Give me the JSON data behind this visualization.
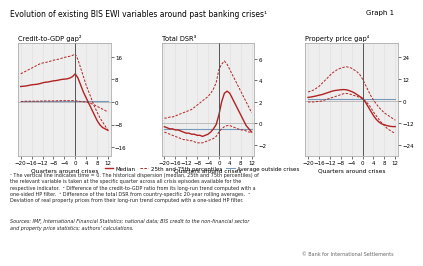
{
  "title": "Evolution of existing BIS EWI variables around past banking crises¹",
  "graph_label": "Graph 1",
  "quarters": [
    -20,
    -19,
    -18,
    -17,
    -16,
    -15,
    -14,
    -13,
    -12,
    -11,
    -10,
    -9,
    -8,
    -7,
    -6,
    -5,
    -4,
    -3,
    -2,
    -1,
    0,
    1,
    2,
    3,
    4,
    5,
    6,
    7,
    8,
    9,
    10,
    11,
    12
  ],
  "panel1": {
    "title": "Credit-to-GDP gap²",
    "yticks": [
      -16,
      -8,
      0,
      8,
      16
    ],
    "ylim": [
      -19,
      21
    ],
    "median": [
      5.5,
      5.6,
      5.7,
      5.9,
      6.1,
      6.2,
      6.3,
      6.5,
      6.8,
      7.0,
      7.1,
      7.3,
      7.5,
      7.6,
      7.8,
      8.0,
      8.1,
      8.2,
      8.5,
      9.0,
      10.0,
      8.5,
      6.0,
      3.5,
      1.5,
      -0.5,
      -2.5,
      -4.5,
      -6.5,
      -8.0,
      -9.0,
      -9.5,
      -10.0
    ],
    "p25": [
      0.2,
      0.2,
      0.3,
      0.3,
      0.3,
      0.3,
      0.3,
      0.3,
      0.4,
      0.4,
      0.4,
      0.4,
      0.4,
      0.4,
      0.5,
      0.5,
      0.5,
      0.5,
      0.5,
      0.5,
      0.5,
      0.3,
      0.2,
      0.1,
      0.0,
      -0.3,
      -0.6,
      -1.0,
      -1.5,
      -2.0,
      -2.5,
      -3.0,
      -3.5
    ],
    "p75": [
      10.0,
      10.5,
      11.0,
      11.5,
      12.0,
      12.5,
      13.0,
      13.5,
      13.8,
      14.0,
      14.2,
      14.5,
      14.8,
      15.0,
      15.2,
      15.5,
      15.8,
      16.0,
      16.2,
      16.5,
      17.0,
      15.0,
      12.0,
      9.0,
      6.0,
      3.5,
      1.0,
      -1.5,
      -3.5,
      -5.5,
      -7.0,
      -8.5,
      -10.0
    ],
    "avg_outside": [
      0.5,
      0.5,
      0.5,
      0.5,
      0.5,
      0.5,
      0.5,
      0.5,
      0.5,
      0.5,
      0.5,
      0.5,
      0.5,
      0.5,
      0.5,
      0.5,
      0.5,
      0.5,
      0.5,
      0.5,
      0.5,
      0.5,
      0.5,
      0.5,
      0.5,
      0.5,
      0.5,
      0.5,
      0.5,
      0.5,
      0.5,
      0.5,
      0.5
    ]
  },
  "panel2": {
    "title": "Total DSR³",
    "yticks": [
      -2,
      0,
      2,
      4,
      6
    ],
    "ylim": [
      -3,
      7.5
    ],
    "median": [
      -0.3,
      -0.4,
      -0.5,
      -0.5,
      -0.6,
      -0.6,
      -0.7,
      -0.8,
      -0.9,
      -0.9,
      -1.0,
      -1.0,
      -1.1,
      -1.1,
      -1.2,
      -1.1,
      -1.0,
      -0.8,
      -0.5,
      -0.1,
      0.8,
      2.0,
      2.8,
      3.0,
      2.8,
      2.3,
      1.8,
      1.3,
      0.8,
      0.3,
      -0.2,
      -0.5,
      -0.8
    ],
    "p25": [
      -0.8,
      -0.9,
      -1.0,
      -1.1,
      -1.2,
      -1.3,
      -1.4,
      -1.5,
      -1.5,
      -1.6,
      -1.6,
      -1.7,
      -1.8,
      -1.8,
      -1.8,
      -1.7,
      -1.6,
      -1.5,
      -1.4,
      -1.2,
      -0.8,
      -0.5,
      -0.3,
      -0.2,
      -0.2,
      -0.3,
      -0.4,
      -0.5,
      -0.6,
      -0.6,
      -0.7,
      -0.8,
      -0.8
    ],
    "p75": [
      0.5,
      0.5,
      0.6,
      0.6,
      0.7,
      0.8,
      0.9,
      1.0,
      1.1,
      1.2,
      1.3,
      1.5,
      1.7,
      1.9,
      2.1,
      2.3,
      2.5,
      2.8,
      3.2,
      3.8,
      5.0,
      5.5,
      5.8,
      5.5,
      5.0,
      4.5,
      4.0,
      3.5,
      3.0,
      2.5,
      2.0,
      1.5,
      1.0
    ],
    "avg_outside": [
      -0.5,
      -0.5,
      -0.5,
      -0.5,
      -0.5,
      -0.5,
      -0.5,
      -0.5,
      -0.5,
      -0.5,
      -0.5,
      -0.5,
      -0.5,
      -0.5,
      -0.5,
      -0.5,
      -0.5,
      -0.5,
      -0.5,
      -0.5,
      -0.5,
      -0.5,
      -0.5,
      -0.5,
      -0.5,
      -0.5,
      -0.5,
      -0.5,
      -0.5,
      -0.5,
      -0.5,
      -0.5,
      -0.5
    ]
  },
  "panel3": {
    "title": "Property price gap⁴",
    "yticks": [
      -24,
      -12,
      0,
      12,
      24
    ],
    "ylim": [
      -30,
      32
    ],
    "median": [
      2.0,
      2.2,
      2.5,
      2.8,
      3.2,
      3.5,
      4.0,
      4.5,
      5.0,
      5.5,
      5.8,
      6.0,
      6.2,
      6.3,
      6.2,
      5.8,
      5.2,
      4.5,
      3.5,
      2.5,
      1.5,
      -0.5,
      -3.0,
      -5.5,
      -8.0,
      -10.0,
      -11.5,
      -12.5,
      -13.0,
      -13.5,
      -13.8,
      -14.0,
      -14.0
    ],
    "p25": [
      -0.5,
      -0.5,
      -0.5,
      -0.3,
      -0.2,
      0.0,
      0.5,
      1.0,
      1.5,
      2.0,
      2.5,
      3.0,
      3.5,
      4.0,
      4.2,
      4.0,
      3.5,
      3.0,
      2.5,
      2.0,
      1.2,
      0.0,
      -1.5,
      -3.5,
      -6.0,
      -8.0,
      -10.0,
      -12.0,
      -13.5,
      -15.0,
      -16.0,
      -17.0,
      -17.5
    ],
    "p75": [
      5.0,
      5.5,
      6.0,
      7.0,
      8.0,
      9.5,
      11.0,
      12.5,
      14.0,
      15.5,
      16.5,
      17.5,
      18.0,
      18.5,
      18.8,
      18.5,
      18.0,
      17.0,
      16.0,
      14.5,
      12.0,
      9.0,
      6.0,
      3.0,
      0.5,
      -1.5,
      -3.5,
      -5.0,
      -6.5,
      -7.5,
      -8.5,
      -9.5,
      -10.5
    ],
    "avg_outside": [
      1.0,
      1.0,
      1.0,
      1.0,
      1.0,
      1.0,
      1.0,
      1.0,
      1.0,
      1.0,
      1.0,
      1.0,
      1.0,
      1.0,
      1.0,
      1.0,
      1.0,
      1.0,
      1.0,
      1.0,
      1.0,
      1.0,
      1.0,
      1.0,
      1.0,
      1.0,
      1.0,
      1.0,
      1.0,
      1.0,
      1.0,
      1.0,
      1.0
    ]
  },
  "colors": {
    "median": "#b22222",
    "percentile": "#b22222",
    "avg_outside": "#7799bb",
    "vline": "#555555",
    "hline": "#aaaaaa",
    "grid": "#dddddd",
    "background": "#eeeeee"
  },
  "footnote1": "¹ The vertical line indicates time = 0. The historical dispersion (median, 25th and 75th percentiles) of the relevant variable is taken at the specific quarter across all crisis episodes available for the respective indicator.  ² Difference of the credit-to-GDP ratio from its long-run trend computed with a one-sided HP filter.  ³ Difference of the total DSR from country-specific 20-year rolling averages.  ⁴ Deviation of real property prices from their long-run trend computed with a one-sided HP filter.",
  "source": "Sources: IMF, International Financial Statistics; national data; BIS credit to the non-financial sector and property price statistics; authors’ calculations."
}
